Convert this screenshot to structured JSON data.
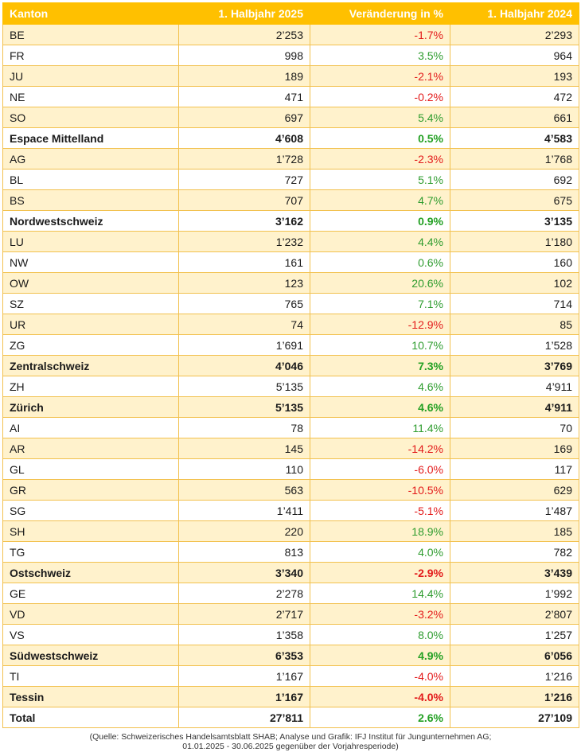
{
  "header": {
    "col1": "Kanton",
    "col2": "1. Halbjahr 2025",
    "col3": "Veränderung in %",
    "col4": "1. Halbjahr 2024"
  },
  "rows": [
    {
      "name": "BE",
      "v2025": "2’253",
      "change": "-1.7%",
      "dir": "neg",
      "v2024": "2’293",
      "bold": false
    },
    {
      "name": "FR",
      "v2025": "998",
      "change": "3.5%",
      "dir": "pos",
      "v2024": "964",
      "bold": false
    },
    {
      "name": "JU",
      "v2025": "189",
      "change": "-2.1%",
      "dir": "neg",
      "v2024": "193",
      "bold": false
    },
    {
      "name": "NE",
      "v2025": "471",
      "change": "-0.2%",
      "dir": "neg",
      "v2024": "472",
      "bold": false
    },
    {
      "name": "SO",
      "v2025": "697",
      "change": "5.4%",
      "dir": "pos",
      "v2024": "661",
      "bold": false
    },
    {
      "name": "Espace Mittelland",
      "v2025": "4’608",
      "change": "0.5%",
      "dir": "pos",
      "v2024": "4’583",
      "bold": true
    },
    {
      "name": "AG",
      "v2025": "1’728",
      "change": "-2.3%",
      "dir": "neg",
      "v2024": "1’768",
      "bold": false
    },
    {
      "name": "BL",
      "v2025": "727",
      "change": "5.1%",
      "dir": "pos",
      "v2024": "692",
      "bold": false
    },
    {
      "name": "BS",
      "v2025": "707",
      "change": "4.7%",
      "dir": "pos",
      "v2024": "675",
      "bold": false
    },
    {
      "name": "Nordwestschweiz",
      "v2025": "3’162",
      "change": "0.9%",
      "dir": "pos",
      "v2024": "3’135",
      "bold": true
    },
    {
      "name": "LU",
      "v2025": "1’232",
      "change": "4.4%",
      "dir": "pos",
      "v2024": "1’180",
      "bold": false
    },
    {
      "name": "NW",
      "v2025": "161",
      "change": "0.6%",
      "dir": "pos",
      "v2024": "160",
      "bold": false
    },
    {
      "name": "OW",
      "v2025": "123",
      "change": "20.6%",
      "dir": "pos",
      "v2024": "102",
      "bold": false
    },
    {
      "name": "SZ",
      "v2025": "765",
      "change": "7.1%",
      "dir": "pos",
      "v2024": "714",
      "bold": false
    },
    {
      "name": "UR",
      "v2025": "74",
      "change": "-12.9%",
      "dir": "neg",
      "v2024": "85",
      "bold": false
    },
    {
      "name": "ZG",
      "v2025": "1’691",
      "change": "10.7%",
      "dir": "pos",
      "v2024": "1’528",
      "bold": false
    },
    {
      "name": "Zentralschweiz",
      "v2025": "4’046",
      "change": "7.3%",
      "dir": "pos",
      "v2024": "3’769",
      "bold": true
    },
    {
      "name": "ZH",
      "v2025": "5’135",
      "change": "4.6%",
      "dir": "pos",
      "v2024": "4’911",
      "bold": false
    },
    {
      "name": "Zürich",
      "v2025": "5’135",
      "change": "4.6%",
      "dir": "pos",
      "v2024": "4’911",
      "bold": true
    },
    {
      "name": "AI",
      "v2025": "78",
      "change": "11.4%",
      "dir": "pos",
      "v2024": "70",
      "bold": false
    },
    {
      "name": "AR",
      "v2025": "145",
      "change": "-14.2%",
      "dir": "neg",
      "v2024": "169",
      "bold": false
    },
    {
      "name": "GL",
      "v2025": "110",
      "change": "-6.0%",
      "dir": "neg",
      "v2024": "117",
      "bold": false
    },
    {
      "name": "GR",
      "v2025": "563",
      "change": "-10.5%",
      "dir": "neg",
      "v2024": "629",
      "bold": false
    },
    {
      "name": "SG",
      "v2025": "1’411",
      "change": "-5.1%",
      "dir": "neg",
      "v2024": "1’487",
      "bold": false
    },
    {
      "name": "SH",
      "v2025": "220",
      "change": "18.9%",
      "dir": "pos",
      "v2024": "185",
      "bold": false
    },
    {
      "name": "TG",
      "v2025": "813",
      "change": "4.0%",
      "dir": "pos",
      "v2024": "782",
      "bold": false
    },
    {
      "name": "Ostschweiz",
      "v2025": "3’340",
      "change": "-2.9%",
      "dir": "neg",
      "v2024": "3’439",
      "bold": true
    },
    {
      "name": "GE",
      "v2025": "2’278",
      "change": "14.4%",
      "dir": "pos",
      "v2024": "1’992",
      "bold": false
    },
    {
      "name": "VD",
      "v2025": "2’717",
      "change": "-3.2%",
      "dir": "neg",
      "v2024": "2’807",
      "bold": false
    },
    {
      "name": "VS",
      "v2025": "1’358",
      "change": "8.0%",
      "dir": "pos",
      "v2024": "1’257",
      "bold": false
    },
    {
      "name": "Südwestschweiz",
      "v2025": "6’353",
      "change": "4.9%",
      "dir": "pos",
      "v2024": "6’056",
      "bold": true
    },
    {
      "name": "TI",
      "v2025": "1’167",
      "change": "-4.0%",
      "dir": "neg",
      "v2024": "1’216",
      "bold": false
    },
    {
      "name": "Tessin",
      "v2025": "1’167",
      "change": "-4.0%",
      "dir": "neg",
      "v2024": "1’216",
      "bold": true
    },
    {
      "name": "Total",
      "v2025": "27’811",
      "change": "2.6%",
      "dir": "pos",
      "v2024": "27’109",
      "bold": true
    }
  ],
  "source": {
    "line1": "(Quelle: Schweizerisches Handelsamtsblatt SHAB; Analyse und Grafik: IFJ Institut für Jungunternehmen AG;",
    "line2": "01.01.2025 - 30.06.2025 gegenüber der Vorjahresperiode)"
  },
  "colors": {
    "header_bg": "#ffc000",
    "shade_row": "#fff2cc",
    "positive": "#2e9c2e",
    "negative": "#e31a1a"
  }
}
